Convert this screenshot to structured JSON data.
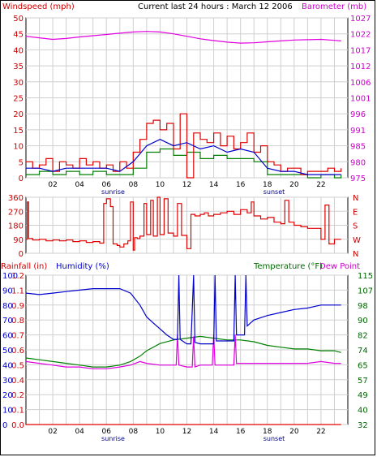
{
  "header": {
    "left_title": "Windspeed (mph)",
    "center_title": "Current last 24 hours : March 12 2006",
    "right_title": "Barometer (mb)"
  },
  "colors": {
    "windspeed": "#e00000",
    "windavg": "#0000cc",
    "windgust_low": "#008000",
    "barometer": "#e000e0",
    "direction": "#e00000",
    "humidity": "#0000cc",
    "temperature": "#008000",
    "dewpoint": "#e000e0",
    "rainfall": "#e00000",
    "axis_red": "#cc0000",
    "axis_green": "#006600",
    "axis_blue": "#0000cc",
    "axis_magenta": "#cc00cc"
  },
  "chart_data": [
    {
      "type": "line",
      "id": "wind-baro",
      "x_tick_labels": [
        "02",
        "04",
        "06",
        "08",
        "10",
        "12",
        "14",
        "16",
        "18",
        "20",
        "22"
      ],
      "x_event_labels": [
        "sunrise",
        "sunset"
      ],
      "x_event_hours": [
        6.5,
        18.5
      ],
      "left_axis": {
        "label": "Windspeed (mph)",
        "ticks": [
          0,
          5,
          10,
          15,
          20,
          25,
          30,
          35,
          40,
          45,
          50
        ],
        "ylim": [
          0,
          50
        ]
      },
      "right_axis": {
        "label": "Barometer (mb)",
        "ticks": [
          975,
          980,
          985,
          991,
          996,
          1001,
          1006,
          1012,
          1017,
          1022,
          1027
        ],
        "ylim": [
          975,
          1027
        ]
      },
      "series": [
        {
          "key": "windspeed",
          "axis": "left",
          "x": [
            0,
            0.5,
            1,
            1.5,
            2,
            2.5,
            3,
            3.5,
            4,
            4.5,
            5,
            5.5,
            6,
            6.5,
            7,
            7.5,
            8,
            8.5,
            9,
            9.5,
            10,
            10.5,
            11,
            11.5,
            12,
            12.5,
            13,
            13.5,
            14,
            14.5,
            15,
            15.5,
            16,
            16.5,
            17,
            17.5,
            18,
            18.5,
            19,
            19.5,
            20,
            20.5,
            21,
            21.5,
            22,
            22.5,
            23,
            23.5
          ],
          "values": [
            5,
            3,
            4,
            6,
            2,
            5,
            4,
            3,
            6,
            4,
            5,
            3,
            4,
            2,
            5,
            3,
            8,
            12,
            17,
            18,
            15,
            17,
            9,
            20,
            0,
            14,
            12,
            11,
            14,
            10,
            13,
            9,
            11,
            14,
            8,
            10,
            5,
            4,
            2,
            3,
            3,
            1,
            2,
            2,
            2,
            3,
            2,
            3
          ]
        },
        {
          "key": "windavg",
          "axis": "left",
          "x": [
            0,
            1,
            2,
            3,
            4,
            5,
            6,
            7,
            8,
            9,
            10,
            11,
            12,
            13,
            14,
            15,
            16,
            17,
            18,
            19,
            20,
            21,
            22,
            23,
            23.5
          ],
          "values": [
            3,
            3,
            2,
            3,
            3,
            3,
            3,
            2,
            5,
            10,
            12,
            10,
            11,
            9,
            10,
            8,
            9,
            8,
            3,
            2,
            2,
            1,
            1,
            1,
            1
          ]
        },
        {
          "key": "windgust_low",
          "axis": "left",
          "x": [
            0,
            1,
            2,
            3,
            4,
            5,
            6,
            7,
            8,
            9,
            10,
            11,
            12,
            13,
            14,
            15,
            16,
            17,
            18,
            19,
            20,
            21,
            22,
            23,
            23.5
          ],
          "values": [
            1,
            2,
            1,
            2,
            1,
            2,
            1,
            1,
            3,
            8,
            9,
            7,
            8,
            6,
            7,
            6,
            6,
            5,
            1,
            1,
            1,
            0,
            1,
            0,
            1
          ]
        },
        {
          "key": "barometer",
          "axis": "right",
          "x": [
            0,
            1,
            2,
            3,
            4,
            5,
            6,
            7,
            8,
            9,
            10,
            11,
            12,
            13,
            14,
            15,
            16,
            17,
            18,
            19,
            20,
            21,
            22,
            23,
            23.5
          ],
          "values": [
            1021,
            1020.5,
            1020,
            1020.3,
            1020.8,
            1021.2,
            1021.6,
            1022,
            1022.4,
            1022.6,
            1022.4,
            1021.8,
            1021,
            1020.2,
            1019.6,
            1019.1,
            1018.8,
            1018.9,
            1019.2,
            1019.5,
            1019.8,
            1019.9,
            1020,
            1019.7,
            1019.5
          ]
        }
      ]
    },
    {
      "type": "line",
      "id": "wind-direction",
      "left_axis": {
        "ticks": [
          0,
          90,
          180,
          270,
          360
        ],
        "ylim": [
          0,
          360
        ]
      },
      "right_axis": {
        "ticks": [
          "N",
          "W",
          "S",
          "E",
          "N"
        ]
      },
      "series": [
        {
          "key": "direction",
          "axis": "left",
          "x": [
            0,
            0.1,
            0.2,
            0.5,
            1,
            1.5,
            2,
            2.5,
            3,
            3.5,
            4,
            4.5,
            5,
            5.5,
            5.8,
            6,
            6.3,
            6.5,
            6.8,
            7,
            7.3,
            7.6,
            7.8,
            8,
            8.1,
            8.3,
            8.5,
            8.8,
            9,
            9.3,
            9.5,
            9.8,
            10,
            10.3,
            10.6,
            11,
            11.3,
            11.6,
            12,
            12.3,
            12.6,
            13,
            13.3,
            13.6,
            14,
            14.5,
            15,
            15.5,
            16,
            16.5,
            16.8,
            17,
            17.5,
            18,
            18.5,
            19,
            19.3,
            19.6,
            20,
            20.5,
            21,
            21.5,
            22,
            22.3,
            22.6,
            23,
            23.5
          ],
          "values": [
            90,
            330,
            95,
            85,
            90,
            80,
            85,
            80,
            85,
            75,
            80,
            70,
            75,
            65,
            320,
            350,
            300,
            60,
            50,
            40,
            60,
            80,
            330,
            20,
            100,
            95,
            110,
            320,
            120,
            340,
            110,
            360,
            120,
            350,
            130,
            110,
            320,
            115,
            30,
            250,
            240,
            250,
            260,
            240,
            250,
            260,
            270,
            250,
            280,
            260,
            330,
            240,
            220,
            230,
            200,
            190,
            340,
            200,
            180,
            170,
            160,
            160,
            90,
            310,
            60,
            90,
            90
          ]
        }
      ]
    },
    {
      "type": "line",
      "id": "rain-humidity-temp",
      "left_labels": [
        "Rainfall (in)",
        "Humidity (%)"
      ],
      "right_labels": [
        "Temperature (°F)",
        "Dew Point"
      ],
      "humidity_axis": {
        "ticks": [
          0,
          10,
          20,
          30,
          40,
          50,
          60,
          70,
          80,
          90,
          100
        ],
        "ylim": [
          0,
          100
        ]
      },
      "rain_axis": {
        "ticks": [
          "0.0",
          "0.1",
          "0.2",
          "0.4",
          "0.5",
          "0.6",
          "0.7",
          "0.8",
          "0.9",
          "1.1",
          "1.2"
        ],
        "ylim": [
          0,
          1.2
        ]
      },
      "temp_axis": {
        "ticks": [
          32,
          40,
          49,
          57,
          65,
          74,
          82,
          90,
          98,
          107,
          115
        ],
        "ylim": [
          32,
          115
        ]
      },
      "series": [
        {
          "key": "humidity",
          "axis": "humidity",
          "x": [
            0,
            1,
            2,
            3,
            4,
            5,
            6,
            7,
            7.8,
            8.5,
            9,
            9.5,
            10,
            10.5,
            11,
            11.3,
            11.4,
            11.5,
            12,
            12.3,
            12.5,
            12.6,
            13,
            14,
            14.1,
            14.2,
            15,
            15.5,
            15.6,
            15.7,
            16,
            16.3,
            16.4,
            16.5,
            17,
            18,
            19,
            20,
            21,
            22,
            23,
            23.5
          ],
          "values": [
            88,
            87,
            88,
            89,
            90,
            91,
            91,
            91,
            88,
            80,
            72,
            68,
            64,
            60,
            57,
            57,
            100,
            57,
            54,
            54,
            100,
            55,
            54,
            54,
            100,
            56,
            56,
            56,
            100,
            60,
            60,
            60,
            100,
            66,
            70,
            73,
            75,
            77,
            78,
            80,
            80,
            80
          ]
        },
        {
          "key": "temperature",
          "axis": "temp",
          "x": [
            0,
            1,
            2,
            3,
            4,
            5,
            6,
            7,
            7.8,
            8.5,
            9,
            10,
            11,
            12,
            13,
            14,
            15,
            16,
            17,
            18,
            19,
            20,
            21,
            22,
            23,
            23.5
          ],
          "values": [
            69,
            68,
            67,
            66,
            65,
            64,
            64,
            65,
            67,
            70,
            73,
            77,
            79,
            80,
            81,
            80,
            79,
            79,
            78,
            76,
            75,
            74,
            74,
            73,
            73,
            72
          ]
        },
        {
          "key": "dewpoint",
          "axis": "temp",
          "x": [
            0,
            1,
            2,
            3,
            4,
            5,
            6,
            7,
            7.8,
            8.5,
            9,
            10,
            11,
            11.2,
            11.3,
            11.4,
            12,
            12.4,
            12.5,
            12.6,
            13,
            13.9,
            14,
            14.1,
            15,
            15.5,
            15.6,
            15.7,
            16,
            17,
            18,
            19,
            20,
            21,
            22,
            23,
            23.5
          ],
          "values": [
            67,
            66,
            65,
            64,
            64,
            63,
            63,
            64,
            65,
            67,
            66,
            65,
            65,
            65,
            82,
            65,
            64,
            64,
            81,
            64,
            65,
            65,
            82,
            65,
            65,
            65,
            82,
            66,
            66,
            66,
            66,
            66,
            66,
            66,
            67,
            66,
            66
          ]
        },
        {
          "key": "rainfall",
          "axis": "rain",
          "x": [
            0,
            23.5
          ],
          "values": [
            0,
            0
          ]
        }
      ]
    }
  ]
}
